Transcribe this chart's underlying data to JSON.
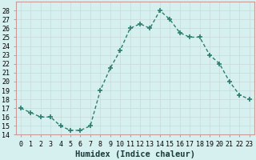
{
  "x": [
    0,
    1,
    2,
    3,
    4,
    5,
    6,
    7,
    8,
    9,
    10,
    11,
    12,
    13,
    14,
    15,
    16,
    17,
    18,
    19,
    20,
    21,
    22,
    23
  ],
  "y": [
    17,
    16.5,
    16,
    16,
    15,
    14.5,
    14.5,
    15,
    19,
    21.5,
    23.5,
    26,
    26.5,
    26,
    28,
    27,
    25.5,
    25,
    25,
    23,
    22,
    20,
    18.5,
    18
  ],
  "line_color": "#2e7d6e",
  "marker": "+",
  "marker_size": 4,
  "bg_color": "#d6f0f0",
  "grid_color": "#c8dada",
  "xlabel": "Humidex (Indice chaleur)",
  "xlabel_fontsize": 7.5,
  "ylim": [
    14,
    29
  ],
  "xlim": [
    -0.5,
    23.5
  ],
  "yticks": [
    14,
    15,
    16,
    17,
    18,
    19,
    20,
    21,
    22,
    23,
    24,
    25,
    26,
    27,
    28
  ],
  "xticks": [
    0,
    1,
    2,
    3,
    4,
    5,
    6,
    7,
    8,
    9,
    10,
    11,
    12,
    13,
    14,
    15,
    16,
    17,
    18,
    19,
    20,
    21,
    22,
    23
  ],
  "tick_fontsize": 6,
  "spine_color": "#888888",
  "line_width": 1.0,
  "border_color": "#cc9999"
}
